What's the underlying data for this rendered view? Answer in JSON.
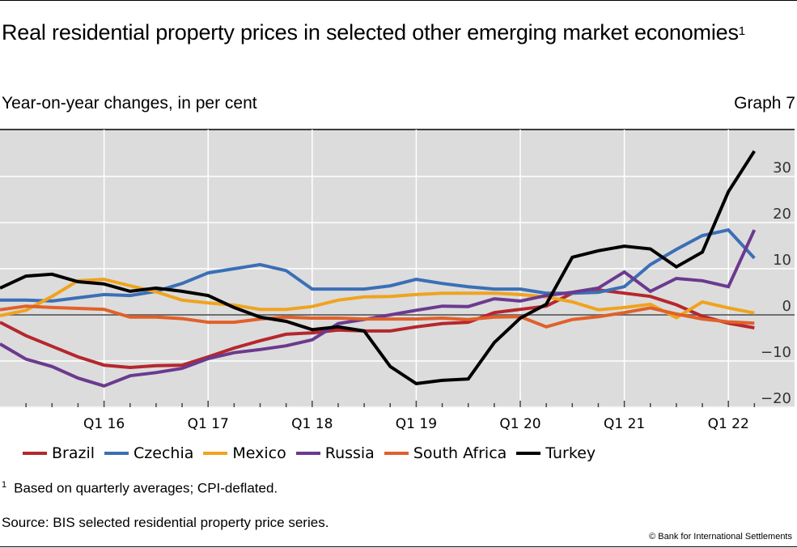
{
  "header": {
    "title": "Real residential property prices in selected other emerging market economies",
    "title_footnote_mark": "1",
    "subtitle": "Year-on-year changes, in per cent",
    "graph_number": "Graph 7"
  },
  "footer": {
    "footnote_mark": "1",
    "footnote": "Based on quarterly averages; CPI-deflated.",
    "source": "Source: BIS selected residential property price series.",
    "copyright": "© Bank for International Settlements"
  },
  "chart_data": {
    "type": "line",
    "title": "Real residential property prices in selected other emerging market economies",
    "subtitle": "Year-on-year changes, in per cent",
    "xlabel": "",
    "ylabel": "",
    "y_axis_side": "right",
    "ylim": [
      -22,
      40
    ],
    "yticks": [
      -20,
      -10,
      0,
      10,
      20,
      30
    ],
    "ytick_labels": [
      "−20",
      "−10",
      "0",
      "10",
      "20",
      "30"
    ],
    "x_start_quarter": "Q1 15",
    "x_quarters_total": 30,
    "xticks_major_labels": [
      {
        "index": 4,
        "label": "Q1 16"
      },
      {
        "index": 8,
        "label": "Q1 17"
      },
      {
        "index": 12,
        "label": "Q1 18"
      },
      {
        "index": 16,
        "label": "Q1 19"
      },
      {
        "index": 20,
        "label": "Q1 20"
      },
      {
        "index": 24,
        "label": "Q1 21"
      },
      {
        "index": 28,
        "label": "Q1 22"
      }
    ],
    "grid": true,
    "legend_position": "bottom",
    "x": [
      "Q1 15",
      "Q2 15",
      "Q3 15",
      "Q4 15",
      "Q1 16",
      "Q2 16",
      "Q3 16",
      "Q4 16",
      "Q1 17",
      "Q2 17",
      "Q3 17",
      "Q4 17",
      "Q1 18",
      "Q2 18",
      "Q3 18",
      "Q4 18",
      "Q1 19",
      "Q2 19",
      "Q3 19",
      "Q4 19",
      "Q1 20",
      "Q2 20",
      "Q3 20",
      "Q4 20",
      "Q1 21",
      "Q2 21",
      "Q3 21",
      "Q4 21",
      "Q1 22",
      "Q2 22"
    ],
    "series": [
      {
        "name": "Brazil",
        "color": "#b5272d",
        "values": [
          -1.6,
          -4.5,
          -6.8,
          -9.1,
          -10.9,
          -11.4,
          -11.0,
          -10.9,
          -9.1,
          -7.2,
          -5.6,
          -4.2,
          -3.9,
          -3.3,
          -3.5,
          -3.5,
          -2.6,
          -1.9,
          -1.6,
          0.5,
          1.2,
          1.9,
          4.7,
          5.4,
          4.7,
          4.0,
          2.2,
          -0.3,
          -1.8,
          -2.8
        ]
      },
      {
        "name": "Czechia",
        "color": "#3b6fb6",
        "values": [
          3.2,
          3.2,
          3.0,
          3.7,
          4.4,
          4.2,
          5.1,
          6.8,
          9.1,
          10.0,
          10.9,
          9.6,
          5.6,
          5.6,
          5.6,
          6.3,
          7.7,
          6.8,
          6.1,
          5.6,
          5.6,
          4.7,
          4.7,
          4.9,
          6.1,
          10.9,
          14.2,
          17.2,
          18.4,
          12.3
        ]
      },
      {
        "name": "Mexico",
        "color": "#f0a31f",
        "values": [
          -0.2,
          1.0,
          4.0,
          7.4,
          7.7,
          6.3,
          5.0,
          3.2,
          2.6,
          2.1,
          1.2,
          1.2,
          1.8,
          3.2,
          3.9,
          4.0,
          4.4,
          4.7,
          4.7,
          4.7,
          4.4,
          3.9,
          2.8,
          1.1,
          1.6,
          2.3,
          -0.6,
          2.8,
          1.5,
          0.4
        ]
      },
      {
        "name": "Russia",
        "color": "#6b3a8e",
        "values": [
          -6.3,
          -9.6,
          -11.2,
          -13.7,
          -15.4,
          -13.2,
          -12.5,
          -11.6,
          -9.5,
          -8.2,
          -7.5,
          -6.7,
          -5.4,
          -1.9,
          -1.0,
          0.0,
          1.0,
          1.9,
          1.8,
          3.5,
          3.0,
          4.2,
          4.9,
          5.8,
          9.3,
          5.1,
          7.9,
          7.4,
          6.1,
          18.4
        ]
      },
      {
        "name": "South Africa",
        "color": "#e0612a",
        "values": [
          1.1,
          1.9,
          1.6,
          1.4,
          1.2,
          -0.5,
          -0.5,
          -0.8,
          -1.6,
          -1.6,
          -0.9,
          -0.5,
          -0.7,
          -0.7,
          -0.9,
          -0.9,
          -0.9,
          -0.7,
          -1.0,
          -0.5,
          -0.4,
          -2.6,
          -1.0,
          -0.4,
          0.5,
          1.5,
          0.2,
          -0.9,
          -1.5,
          -1.8
        ]
      },
      {
        "name": "Turkey",
        "color": "#000000",
        "values": [
          5.8,
          8.4,
          8.8,
          7.2,
          6.7,
          5.1,
          5.8,
          5.1,
          4.2,
          1.6,
          -0.5,
          -1.4,
          -3.2,
          -2.6,
          -3.5,
          -11.2,
          -14.9,
          -14.2,
          -13.9,
          -6.0,
          -0.7,
          2.3,
          12.5,
          13.9,
          14.9,
          14.3,
          10.4,
          13.6,
          26.7,
          35.5
        ]
      }
    ]
  }
}
